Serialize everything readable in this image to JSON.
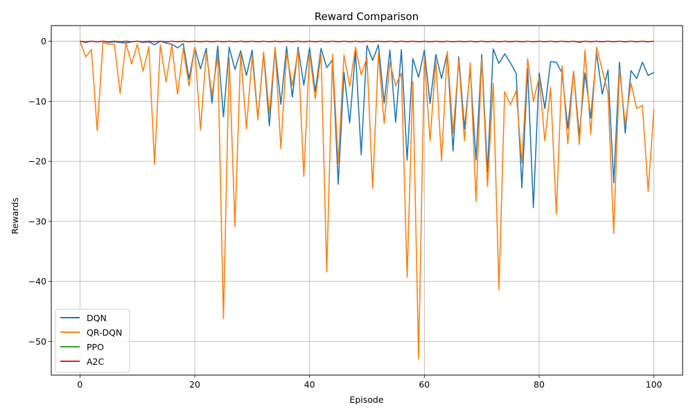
{
  "chart_data": {
    "type": "line",
    "title": "Reward Comparison",
    "xlabel": "Episode",
    "ylabel": "Rewards",
    "xlim": [
      -5,
      105
    ],
    "ylim": [
      -55.6,
      2.6
    ],
    "xticks": [
      0,
      20,
      40,
      60,
      80,
      100
    ],
    "yticks": [
      0,
      -10,
      -20,
      -30,
      -40,
      -50
    ],
    "xtick_labels": [
      "0",
      "20",
      "40",
      "60",
      "80",
      "100"
    ],
    "ytick_labels": [
      "0",
      "−10",
      "−20",
      "−30",
      "−40",
      "−50"
    ],
    "grid": true,
    "legend_position": "lower-left",
    "series": [
      {
        "name": "DQN",
        "color": "#1f77b4",
        "values": [
          0,
          -0.2,
          0,
          -0.1,
          0,
          -0.2,
          -0.1,
          -0.2,
          -0.3,
          -0.1,
          0,
          -0.2,
          -0.1,
          -0.6,
          0,
          -0.3,
          -0.5,
          -1.1,
          -0.4,
          -6.3,
          -1.1,
          -4.6,
          -1.2,
          -10.3,
          -0.8,
          -12.6,
          -1.0,
          -4.7,
          -1.6,
          -5.7,
          -1.5,
          -12.9,
          -2.0,
          -14.1,
          -1.2,
          -10.5,
          -0.9,
          -9.3,
          -1.0,
          -7.3,
          -1.1,
          -8.4,
          -1.2,
          -4.4,
          -3.1,
          -23.8,
          -5.2,
          -13.6,
          -1.8,
          -18.9,
          -0.7,
          -3.2,
          -0.6,
          -10.3,
          -1.5,
          -13.5,
          -1.4,
          -19.8,
          -2.9,
          -6.0,
          -1.5,
          -10.4,
          -2.2,
          -6.2,
          -1.9,
          -18.3,
          -2.6,
          -14.6,
          -4.6,
          -19.8,
          -2.2,
          -21.8,
          -1.3,
          -3.7,
          -2.1,
          -3.6,
          -5.4,
          -24.4,
          -4.6,
          -27.7,
          -5.3,
          -11.2,
          -3.4,
          -3.5,
          -5.3,
          -14.5,
          -5.0,
          -15.7,
          -5.3,
          -12.8,
          -2.0,
          -8.8,
          -4.8,
          -23.6,
          -3.5,
          -15.3,
          -4.9,
          -6.2,
          -3.5,
          -5.7,
          -5.2
        ]
      },
      {
        "name": "QR-DQN",
        "color": "#ff7f0e",
        "values": [
          0,
          -2.6,
          -1.4,
          -14.9,
          -0.2,
          -0.5,
          -0.5,
          -8.7,
          -0.3,
          -3.8,
          -0.5,
          -5.0,
          -0.9,
          -20.5,
          -0.6,
          -6.8,
          -0.6,
          -8.8,
          -1.2,
          -7.5,
          -1.0,
          -14.8,
          -1.9,
          -9.0,
          -2.4,
          -46.2,
          -2.7,
          -30.9,
          -2.0,
          -14.6,
          -2.5,
          -13.1,
          -1.8,
          -12.1,
          -1.0,
          -17.9,
          -2.0,
          -7.4,
          -1.5,
          -22.5,
          -1.9,
          -9.6,
          -2.2,
          -38.4,
          -2.2,
          -20.3,
          -2.3,
          -7.5,
          -1.0,
          -5.6,
          -2.7,
          -24.5,
          -2.0,
          -13.7,
          -3.6,
          -7.4,
          -5.3,
          -39.3,
          -6.7,
          -52.9,
          -2.9,
          -16.6,
          -3.2,
          -19.9,
          -1.7,
          -15.3,
          -3.2,
          -16.6,
          -3.6,
          -26.7,
          -2.9,
          -24.2,
          -7.0,
          -41.4,
          -8.4,
          -10.6,
          -8.3,
          -20.3,
          -2.9,
          -10.0,
          -6.0,
          -16.6,
          -7.7,
          -28.8,
          -4.1,
          -17.1,
          -5.0,
          -17.2,
          -1.5,
          -15.5,
          -1.0,
          -4.8,
          -8.6,
          -32.0,
          -4.7,
          -13.8,
          -7.0,
          -11.2,
          -10.7,
          -25.0,
          -11.3
        ]
      },
      {
        "name": "PPO",
        "color": "#2ca02c",
        "values": [
          0,
          -0.1,
          0,
          -0.1,
          0,
          -0.1,
          0,
          -0.1,
          0,
          -0.1,
          0,
          -0.1,
          0,
          -0.1,
          0,
          -0.1,
          0,
          -0.1,
          0,
          -0.1,
          0,
          -0.1,
          0,
          -0.1,
          0,
          -0.1,
          0,
          -0.1,
          0,
          -0.1,
          0,
          -0.1,
          0,
          -0.1,
          0,
          -0.1,
          0,
          -0.1,
          0,
          -0.1,
          0,
          -0.1,
          0,
          -0.1,
          0,
          -0.1,
          0,
          -0.1,
          0,
          -0.1,
          0,
          -0.1,
          0,
          -0.1,
          0,
          -0.1,
          0,
          -0.1,
          0,
          -0.1,
          0,
          -0.1,
          0,
          -0.1,
          0,
          -0.1,
          0,
          -0.1,
          0,
          -0.1,
          0,
          -0.1,
          0,
          -0.1,
          0,
          -0.1,
          0,
          -0.1,
          0,
          -0.1,
          0,
          -0.1,
          0,
          -0.1,
          0,
          -0.1,
          0,
          -0.2,
          0,
          -0.1,
          0,
          -0.1,
          0,
          -0.1,
          0,
          -0.1,
          0,
          -0.1,
          0,
          -0.1,
          0
        ]
      },
      {
        "name": "A2C",
        "color": "#d62728",
        "values": [
          0,
          -0.1,
          0,
          -0.1,
          0,
          -0.1,
          0,
          -0.1,
          0,
          -0.1,
          0,
          -0.1,
          0,
          -0.1,
          0,
          -0.1,
          0,
          -0.1,
          0,
          -0.1,
          0,
          -0.1,
          0,
          -0.1,
          0,
          -0.1,
          0,
          -0.1,
          0,
          -0.1,
          0,
          -0.1,
          0,
          -0.1,
          0,
          -0.1,
          0,
          -0.1,
          0,
          -0.1,
          0,
          -0.1,
          0,
          -0.1,
          0,
          -0.1,
          0,
          -0.1,
          0,
          -0.1,
          0,
          -0.1,
          0,
          -0.1,
          0,
          -0.1,
          0,
          -0.1,
          0,
          -0.1,
          0,
          -0.1,
          0,
          -0.1,
          0,
          -0.1,
          0,
          -0.1,
          0,
          -0.1,
          0,
          -0.1,
          0,
          -0.1,
          0,
          -0.1,
          0,
          -0.1,
          0,
          -0.1,
          0,
          -0.1,
          0,
          -0.1,
          0,
          -0.1,
          0,
          -0.1,
          0,
          -0.1,
          0,
          -0.1,
          0,
          -0.1,
          0,
          -0.1,
          0,
          -0.1,
          0,
          -0.1,
          0
        ]
      }
    ]
  }
}
